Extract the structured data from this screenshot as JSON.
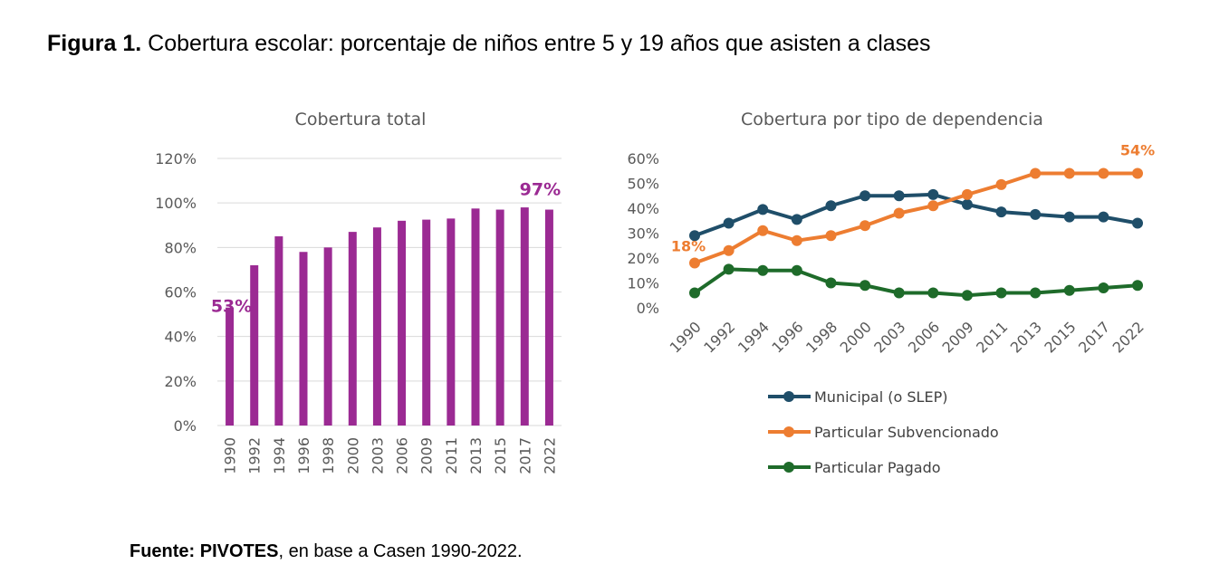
{
  "figure": {
    "label": "Figura 1.",
    "title": "Cobertura escolar: porcentaje de niños entre 5 y 19 años que asisten a clases"
  },
  "source": {
    "label": "Fuente:",
    "org": "PIVOTES",
    "text": ", en base a Casen 1990-2022."
  },
  "colors": {
    "bar": "#9B2A93",
    "municipal": "#1F4E69",
    "subvencionado": "#ED7D31",
    "pagado": "#1E6B2A",
    "grid": "#D9D9D9",
    "axis_text": "#595959"
  },
  "chart_data": [
    {
      "type": "bar",
      "title": "Cobertura total",
      "categories": [
        "1990",
        "1992",
        "1994",
        "1996",
        "1998",
        "2000",
        "2003",
        "2006",
        "2009",
        "2011",
        "2013",
        "2015",
        "2017",
        "2022"
      ],
      "values": [
        53,
        72,
        85,
        78,
        80,
        87,
        89,
        92,
        92.5,
        93,
        97.5,
        97,
        98,
        97
      ],
      "ylim": [
        0,
        120
      ],
      "yticks": [
        "0%",
        "20%",
        "40%",
        "60%",
        "80%",
        "100%",
        "120%"
      ],
      "grid": true,
      "annotations": [
        {
          "category": "1990",
          "text": "53%"
        },
        {
          "category": "2022",
          "text": "97%"
        }
      ]
    },
    {
      "type": "line",
      "title": "Cobertura por tipo de dependencia",
      "categories": [
        "1990",
        "1992",
        "1994",
        "1996",
        "1998",
        "2000",
        "2003",
        "2006",
        "2009",
        "2011",
        "2013",
        "2015",
        "2017",
        "2022"
      ],
      "ylim": [
        0,
        60
      ],
      "yticks": [
        "0%",
        "10%",
        "20%",
        "30%",
        "40%",
        "50%",
        "60%"
      ],
      "grid": false,
      "legend_position": "bottom",
      "series": [
        {
          "name": "Municipal (o SLEP)",
          "color_key": "municipal",
          "values": [
            29,
            34,
            39.5,
            35.5,
            41,
            45,
            45,
            45.5,
            41.5,
            38.5,
            37.5,
            36.5,
            36.5,
            34
          ]
        },
        {
          "name": "Particular Subvencionado",
          "color_key": "subvencionado",
          "values": [
            18,
            23,
            31,
            27,
            29,
            33,
            38,
            41,
            45.5,
            49.5,
            54,
            54,
            54,
            54
          ]
        },
        {
          "name": "Particular Pagado",
          "color_key": "pagado",
          "values": [
            6,
            15.5,
            15,
            15,
            10,
            9,
            6,
            6,
            5,
            6,
            6,
            7,
            8,
            9
          ]
        }
      ],
      "annotations": [
        {
          "series": "Particular Subvencionado",
          "category": "1990",
          "text": "18%"
        },
        {
          "series": "Particular Subvencionado",
          "category": "2022",
          "text": "54%"
        }
      ]
    }
  ]
}
